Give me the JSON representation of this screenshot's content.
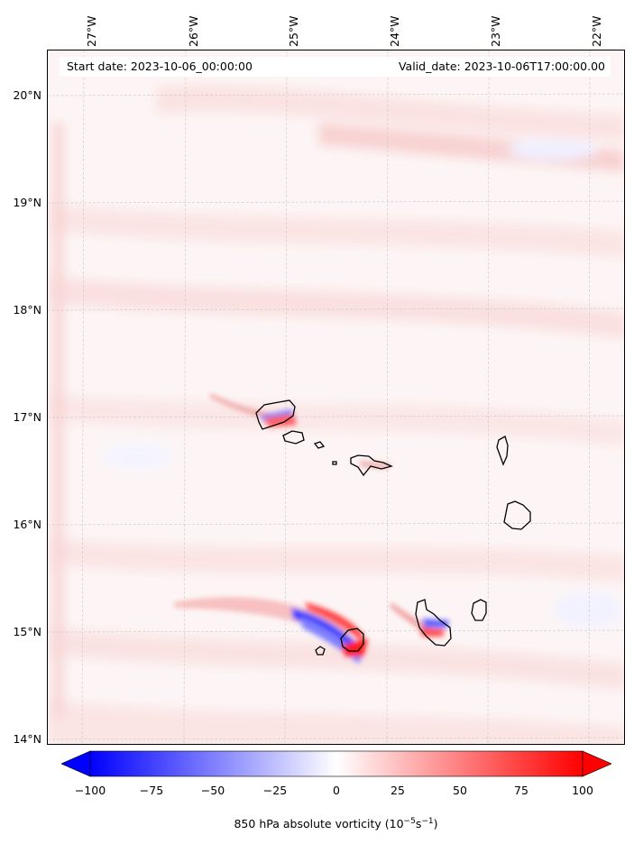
{
  "header": {
    "start_date": "Start date: 2023-10-06_00:00:00",
    "valid_date": "Valid_date: 2023-10-06T17:00:00.00"
  },
  "map": {
    "longitude_labels": [
      "27°W",
      "26°W",
      "25°W",
      "24°W",
      "23°W",
      "22°W"
    ],
    "latitude_labels": [
      "20°N",
      "19°N",
      "18°N",
      "17°N",
      "16°N",
      "15°N",
      "14°N"
    ],
    "gridlines": true,
    "field": "850 hPa absolute vorticity",
    "islands": [
      "Santo Antão",
      "São Vicente",
      "Santa Luzia",
      "São Nicolau",
      "Sal",
      "Boa Vista",
      "Brava",
      "Fogo",
      "Santiago",
      "Maio"
    ]
  },
  "colorbar": {
    "ticks": [
      "−100",
      "−75",
      "−50",
      "−25",
      "0",
      "25",
      "50",
      "75",
      "100"
    ],
    "label_main": "850 hPa absolute vorticity (10",
    "label_exp1": "−5",
    "label_mid": "s",
    "label_exp2": "−1",
    "label_end": ")",
    "min_color": "#0000ff",
    "mid_color": "#ffffff",
    "max_color": "#ff0000",
    "extend": "both"
  }
}
